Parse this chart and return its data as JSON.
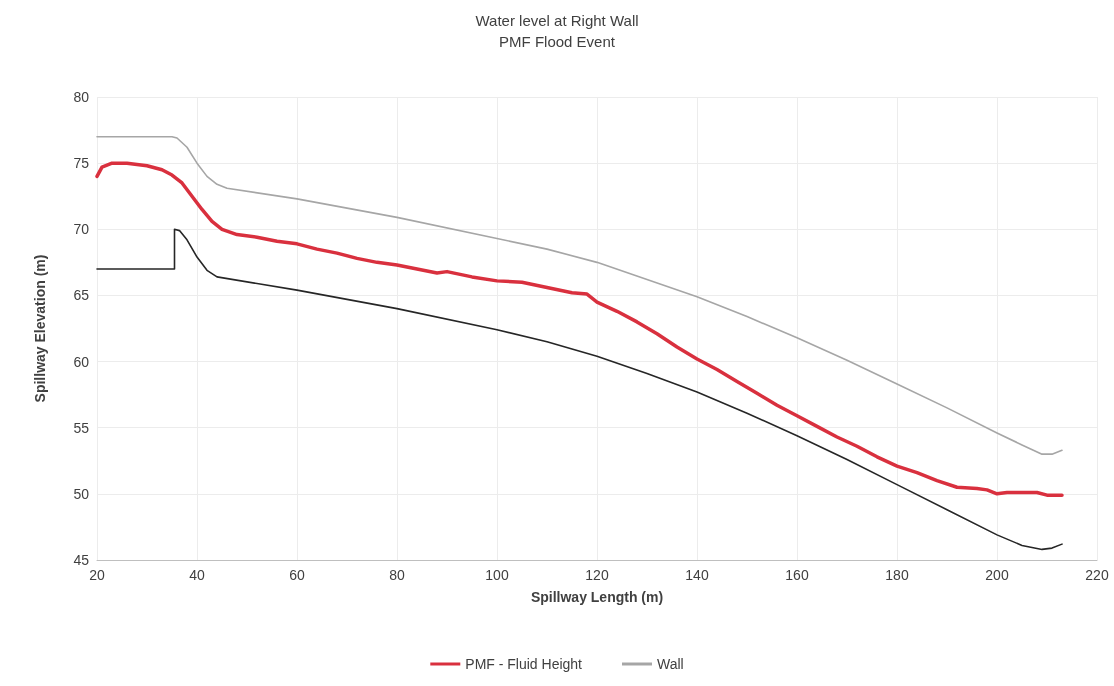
{
  "chart_data": {
    "type": "line",
    "title": "Water level at Right Wall",
    "subtitle": "PMF Flood Event",
    "xlabel": "Spillway Length (m)",
    "ylabel": "Spillway Elevation (m)",
    "xlim": [
      20,
      220
    ],
    "xticks": [
      20,
      40,
      60,
      80,
      100,
      120,
      140,
      160,
      180,
      200,
      220
    ],
    "ylim": [
      45,
      80
    ],
    "yticks": [
      45,
      50,
      55,
      60,
      65,
      70,
      75,
      80
    ],
    "grid": true,
    "legend": "bottom",
    "marker": "none",
    "line_style": "solid",
    "series": [
      {
        "name": "PMF - Fluid Height",
        "color": "#d9303e",
        "x": [
          20,
          21,
          23,
          26,
          30,
          33,
          35,
          37,
          39,
          41,
          43,
          45,
          48,
          52,
          56,
          60,
          64,
          68,
          72,
          76,
          80,
          84,
          88,
          90,
          95,
          100,
          105,
          110,
          115,
          118,
          120,
          124,
          128,
          132,
          136,
          140,
          144,
          148,
          152,
          156,
          160,
          164,
          168,
          172,
          176,
          180,
          184,
          188,
          192,
          196,
          198,
          200,
          202,
          205,
          208,
          210,
          213
        ],
        "values": [
          74,
          74.7,
          75,
          75,
          74.8,
          74.5,
          74.1,
          73.5,
          72.5,
          71.5,
          70.6,
          70,
          69.6,
          69.4,
          69.1,
          68.9,
          68.5,
          68.2,
          67.8,
          67.5,
          67.3,
          67,
          66.7,
          66.8,
          66.4,
          66.1,
          66,
          65.6,
          65.2,
          65.1,
          64.5,
          63.8,
          63,
          62.1,
          61.1,
          60.2,
          59.4,
          58.5,
          57.6,
          56.7,
          55.9,
          55.1,
          54.3,
          53.6,
          52.8,
          52.1,
          51.6,
          51,
          50.5,
          50.4,
          50.3,
          50,
          50.1,
          50.1,
          50.1,
          49.9,
          49.9
        ]
      },
      {
        "name": "Wall",
        "color": "#a6a6a6",
        "x": [
          20,
          35,
          36,
          38,
          40,
          42,
          44,
          46,
          60,
          80,
          100,
          110,
          120,
          130,
          140,
          150,
          160,
          170,
          180,
          190,
          200,
          205,
          209,
          211,
          213
        ],
        "values": [
          77,
          77,
          76.9,
          76.2,
          75,
          74,
          73.4,
          73.1,
          72.3,
          70.9,
          69.3,
          68.5,
          67.5,
          66.2,
          64.9,
          63.4,
          61.8,
          60.1,
          58.3,
          56.5,
          54.6,
          53.7,
          53,
          53,
          53.3
        ]
      },
      {
        "color": "#262626",
        "x": [
          20,
          35.5,
          35.5,
          36.5,
          38,
          40,
          42,
          44,
          60,
          80,
          100,
          110,
          120,
          130,
          140,
          150,
          160,
          170,
          180,
          190,
          200,
          205,
          209,
          211,
          213
        ],
        "values": [
          67,
          67,
          70,
          69.9,
          69.2,
          67.9,
          66.9,
          66.4,
          65.4,
          64,
          62.4,
          61.5,
          60.4,
          59.1,
          57.7,
          56.1,
          54.4,
          52.6,
          50.7,
          48.8,
          46.9,
          46.1,
          45.8,
          45.9,
          46.2
        ]
      }
    ]
  }
}
